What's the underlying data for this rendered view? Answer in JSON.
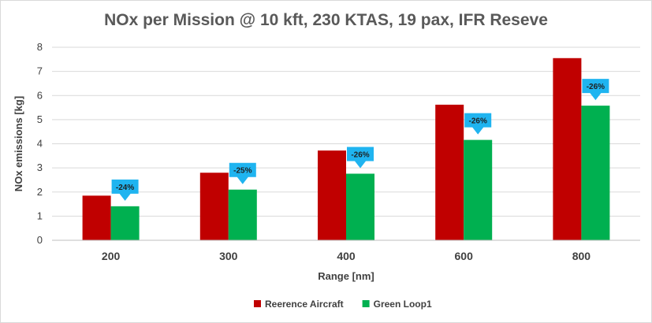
{
  "chart_data": {
    "type": "bar",
    "title": "NOx per Mission @ 10 kft, 230 KTAS, 19 pax, IFR Reseve",
    "xlabel": "Range [nm]",
    "ylabel": "NOx emissions [kg]",
    "ylim": [
      0,
      8
    ],
    "yticks": [
      "0",
      "1",
      "2",
      "3",
      "4",
      "5",
      "6",
      "7",
      "8"
    ],
    "grid": true,
    "legend_position": "bottom",
    "categories": [
      "200",
      "300",
      "400",
      "600",
      "800"
    ],
    "series": [
      {
        "name": "Reerence Aircraft",
        "color": "#c00000",
        "values": [
          1.85,
          2.8,
          3.72,
          5.62,
          7.55
        ]
      },
      {
        "name": "Green Loop1",
        "color": "#00b050",
        "values": [
          1.41,
          2.1,
          2.76,
          4.16,
          5.58
        ]
      }
    ],
    "annotations": [
      "-24%",
      "-25%",
      "-26%",
      "-26%",
      "-26%"
    ],
    "annotation_color": "#1fb4f0"
  }
}
